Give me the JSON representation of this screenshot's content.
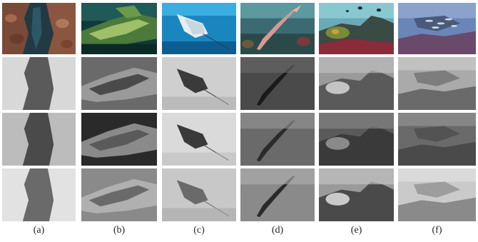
{
  "figure": {
    "columns": [
      {
        "label": "(a)",
        "scene": "rock-crevice"
      },
      {
        "label": "(b)",
        "scene": "shipwreck"
      },
      {
        "label": "(c)",
        "scene": "eagle-ray"
      },
      {
        "label": "(d)",
        "scene": "trumpetfish"
      },
      {
        "label": "(e)",
        "scene": "divers-reef"
      },
      {
        "label": "(f)",
        "scene": "fish-school"
      }
    ],
    "rows": [
      {
        "type": "color-image"
      },
      {
        "type": "grayscale-map"
      },
      {
        "type": "grayscale-map"
      },
      {
        "type": "grayscale-map"
      }
    ]
  }
}
